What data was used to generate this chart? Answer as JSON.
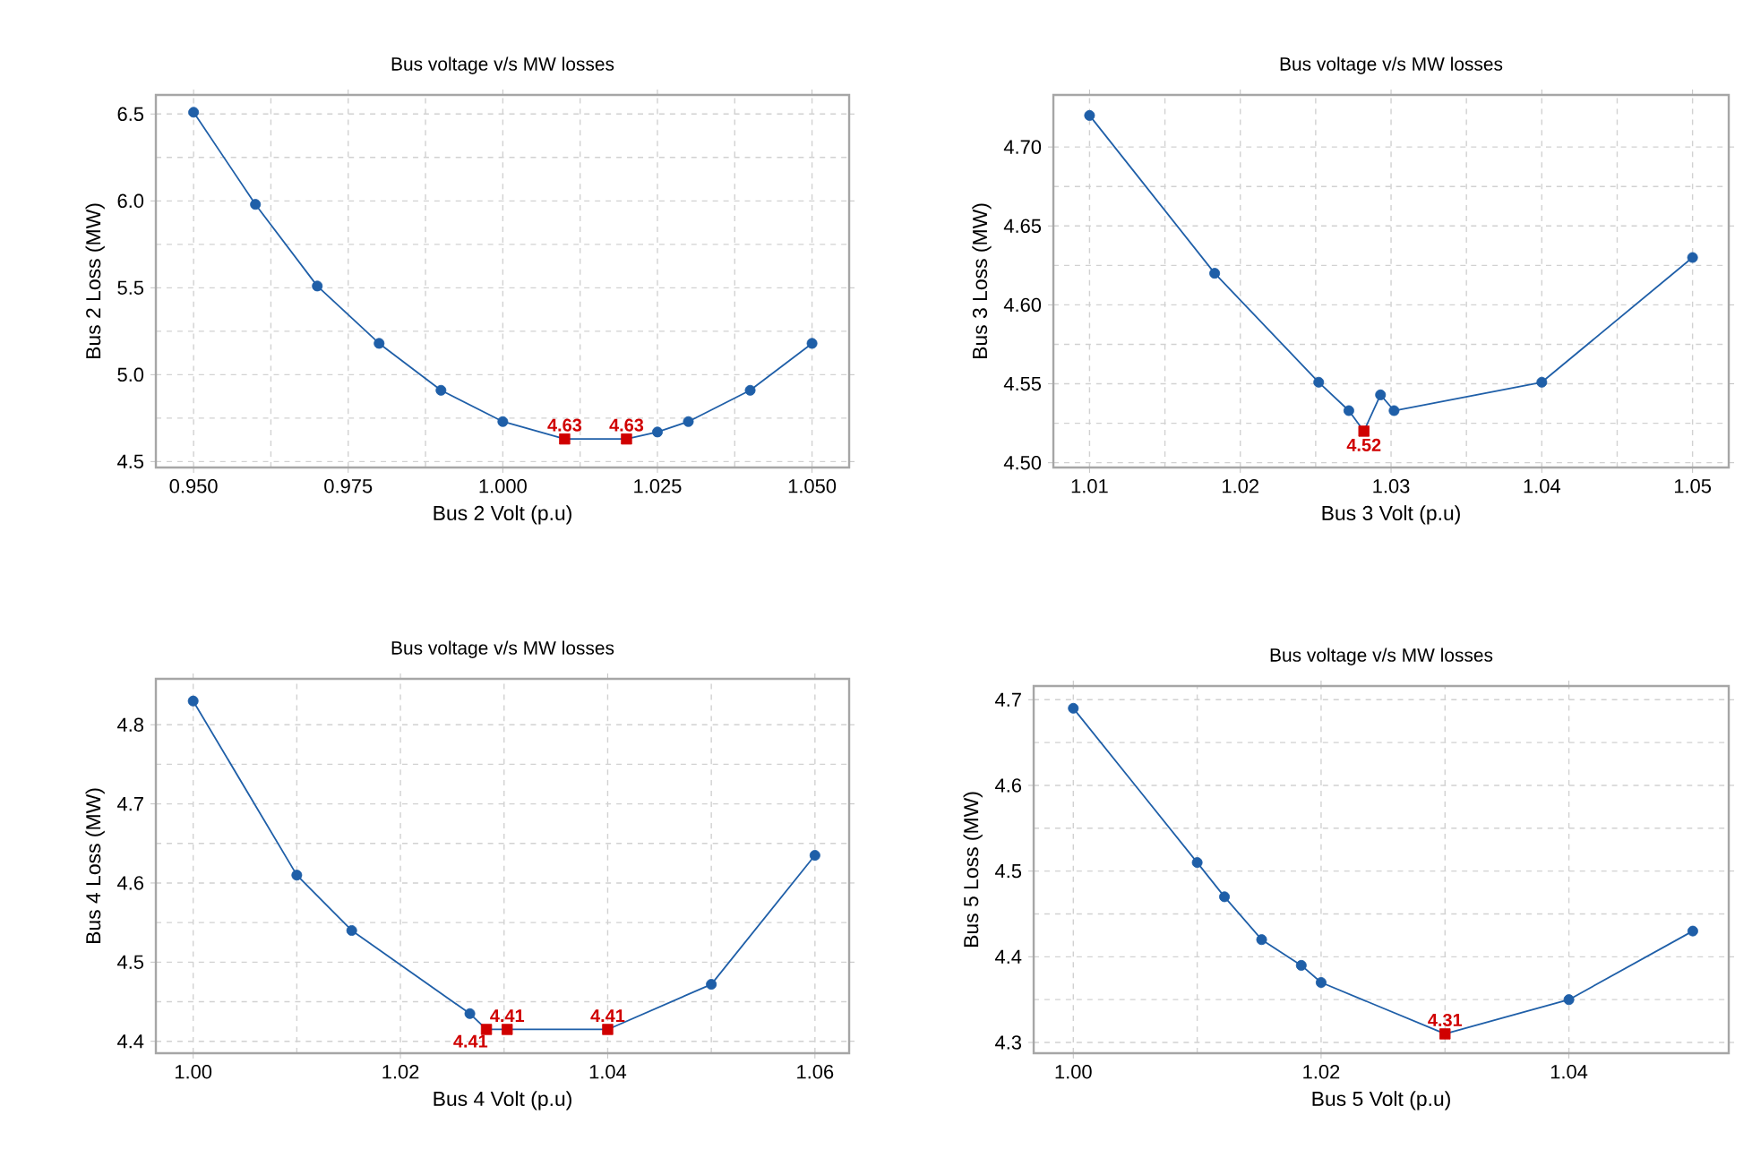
{
  "chart_data": [
    {
      "type": "line",
      "title": "Bus voltage v/s MW losses",
      "xlabel": "Bus 2 Volt (p.u)",
      "ylabel": "Bus 2 Loss (MW)",
      "xlim": [
        0.9439,
        1.056
      ],
      "ylim": [
        4.466,
        6.61
      ],
      "xticks": [
        {
          "value": 0.95,
          "label": "0.950"
        },
        0.975,
        {
          "value": 1.0,
          "label": "1.000"
        },
        1.025,
        {
          "value": 1.05,
          "label": "1.050"
        }
      ],
      "yticks": [
        {
          "value": 4.5,
          "label": "4.5"
        },
        {
          "value": 5.0,
          "label": "5.0"
        },
        {
          "value": 5.5,
          "label": "5.5"
        },
        {
          "value": 6.0,
          "label": "6.0"
        },
        {
          "value": 6.5,
          "label": "6.5"
        }
      ],
      "grid": true,
      "series": [
        {
          "type": "line",
          "color": "#1f5fa8",
          "marker": "none",
          "x": [
            0.95,
            0.96,
            0.97,
            0.98,
            0.99,
            1.0,
            1.01,
            1.02,
            1.025,
            1.03,
            1.04,
            1.05
          ],
          "values": [
            6.51,
            5.98,
            5.51,
            5.18,
            4.91,
            4.73,
            4.63,
            4.63,
            4.67,
            4.73,
            4.91,
            5.18
          ]
        },
        {
          "type": "scatter",
          "color": "#1f5fa8",
          "marker": "circle",
          "x": [
            0.95,
            0.96,
            0.97,
            0.98,
            0.99,
            1.0,
            1.025,
            1.03,
            1.04,
            1.05
          ],
          "values": [
            6.51,
            5.98,
            5.51,
            5.18,
            4.91,
            4.73,
            4.67,
            4.73,
            4.91,
            5.18
          ]
        },
        {
          "type": "scatter",
          "color": "#d00000",
          "marker": "square",
          "x": [
            1.01,
            1.02
          ],
          "values": [
            4.63,
            4.63
          ],
          "value_labels": [
            "4.63",
            "4.63"
          ]
        }
      ]
    },
    {
      "type": "line",
      "title": "Bus voltage v/s MW losses",
      "xlabel": "Bus 3 Volt (p.u)",
      "ylabel": "Bus 3 Loss (MW)",
      "xlim": [
        1.0076,
        1.0524
      ],
      "ylim": [
        4.497,
        4.733
      ],
      "xticks": [
        1.01,
        1.02,
        1.03,
        1.04,
        1.05
      ],
      "yticks": [
        {
          "value": 4.5,
          "label": "4.50"
        },
        4.55,
        {
          "value": 4.6,
          "label": "4.60"
        },
        4.65,
        {
          "value": 4.7,
          "label": "4.70"
        }
      ],
      "grid": true,
      "series": [
        {
          "type": "line",
          "color": "#1f5fa8",
          "marker": "none",
          "x": [
            1.01,
            1.0183,
            1.0252,
            1.0272,
            1.0282,
            1.0293,
            1.0302,
            1.04,
            1.05
          ],
          "values": [
            4.72,
            4.62,
            4.551,
            4.533,
            4.52,
            4.543,
            4.533,
            4.551,
            4.63
          ]
        },
        {
          "type": "scatter",
          "color": "#1f5fa8",
          "marker": "circle",
          "x": [
            1.01,
            1.0183,
            1.0252,
            1.0272,
            1.0293,
            1.0302,
            1.04,
            1.05
          ],
          "values": [
            4.72,
            4.62,
            4.551,
            4.533,
            4.543,
            4.533,
            4.551,
            4.63
          ]
        },
        {
          "type": "scatter",
          "color": "#d00000",
          "marker": "square",
          "x": [
            1.0282
          ],
          "values": [
            4.52
          ],
          "value_labels": [
            "4.52"
          ]
        }
      ]
    },
    {
      "type": "line",
      "title": "Bus voltage v/s MW losses",
      "xlabel": "Bus 4 Volt (p.u)",
      "ylabel": "Bus 4 Loss (MW)",
      "xlim": [
        0.9964,
        1.0633
      ],
      "ylim": [
        4.385,
        4.858
      ],
      "xticks": [
        {
          "value": 1.0,
          "label": "1.00"
        },
        1.02,
        1.04,
        1.06
      ],
      "yticks": [
        4.4,
        4.5,
        4.6,
        4.7,
        4.8
      ],
      "grid": true,
      "series": [
        {
          "type": "line",
          "color": "#1f5fa8",
          "marker": "none",
          "x": [
            1.0,
            1.01,
            1.0153,
            1.0267,
            1.0283,
            1.0303,
            1.04,
            1.05,
            1.06
          ],
          "values": [
            4.83,
            4.61,
            4.54,
            4.435,
            4.415,
            4.415,
            4.415,
            4.472,
            4.635
          ]
        },
        {
          "type": "scatter",
          "color": "#1f5fa8",
          "marker": "circle",
          "x": [
            1.0,
            1.01,
            1.0153,
            1.0267,
            1.05,
            1.06
          ],
          "values": [
            4.83,
            4.61,
            4.54,
            4.435,
            4.472,
            4.635
          ]
        },
        {
          "type": "scatter",
          "color": "#d00000",
          "marker": "square",
          "x": [
            1.0283,
            1.0303,
            1.04
          ],
          "values": [
            4.415,
            4.415,
            4.415
          ],
          "value_labels": [
            "4.41",
            "4.41",
            "4.41"
          ]
        }
      ]
    },
    {
      "type": "line",
      "title": "Bus voltage v/s MW losses",
      "xlabel": "Bus 5 Volt (p.u)",
      "ylabel": "Bus 5 Loss (MW)",
      "xlim": [
        0.9968,
        1.0529
      ],
      "ylim": [
        4.2875,
        4.716
      ],
      "xticks": [
        {
          "value": 1.0,
          "label": "1.00"
        },
        1.02,
        1.04
      ],
      "yticks": [
        4.3,
        4.4,
        4.5,
        4.6,
        4.7
      ],
      "grid": true,
      "series": [
        {
          "type": "line",
          "color": "#1f5fa8",
          "marker": "none",
          "x": [
            1.0,
            1.01,
            1.0122,
            1.0152,
            1.0184,
            1.02,
            1.03,
            1.04,
            1.05
          ],
          "values": [
            4.69,
            4.51,
            4.47,
            4.42,
            4.39,
            4.37,
            4.31,
            4.35,
            4.43
          ]
        },
        {
          "type": "scatter",
          "color": "#1f5fa8",
          "marker": "circle",
          "x": [
            1.0,
            1.01,
            1.0122,
            1.0152,
            1.0184,
            1.02,
            1.04,
            1.05
          ],
          "values": [
            4.69,
            4.51,
            4.47,
            4.42,
            4.39,
            4.37,
            4.35,
            4.43
          ]
        },
        {
          "type": "scatter",
          "color": "#d00000",
          "marker": "square",
          "x": [
            1.03
          ],
          "values": [
            4.31
          ],
          "value_labels": [
            "4.31"
          ]
        }
      ]
    }
  ]
}
